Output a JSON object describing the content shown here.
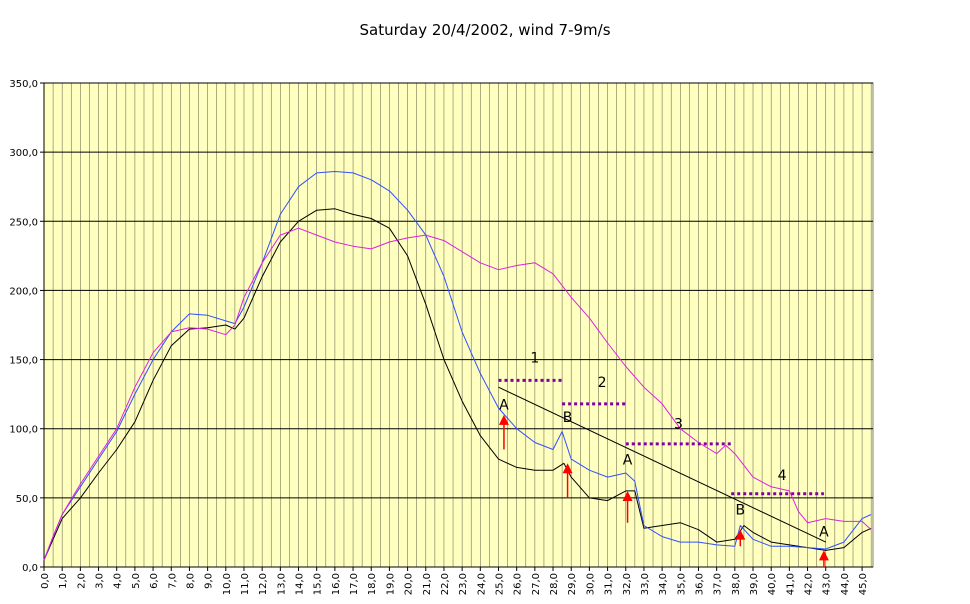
{
  "chart_data": {
    "type": "line",
    "title": "Saturday 20/4/2002, wind 7-9m/s",
    "xlim": [
      0,
      45.6
    ],
    "ylim": [
      0,
      350
    ],
    "y_ticks": [
      "0,0",
      "50,0",
      "100,0",
      "150,0",
      "200,0",
      "250,0",
      "300,0",
      "350,0"
    ],
    "y_tick_values": [
      0,
      50,
      100,
      150,
      200,
      250,
      300,
      350
    ],
    "x_ticks": [
      "0,0",
      "1,0",
      "2,0",
      "3,0",
      "4,0",
      "5,0",
      "6,0",
      "7,0",
      "8,0",
      "9,0",
      "10,0",
      "11,0",
      "12,0",
      "13,0",
      "14,0",
      "15,0",
      "16,0",
      "17,0",
      "18,0",
      "19,0",
      "20,0",
      "21,0",
      "22,0",
      "23,0",
      "24,0",
      "25,0",
      "26,0",
      "27,0",
      "28,0",
      "29,0",
      "30,0",
      "31,0",
      "32,0",
      "33,0",
      "34,0",
      "35,0",
      "36,0",
      "37,0",
      "38,0",
      "39,0",
      "40,0",
      "41,0",
      "42,0",
      "43,0",
      "44,0",
      "45,0"
    ],
    "grid": true,
    "plot_background": "#ffffc0",
    "series": [
      {
        "color": "#000000",
        "x": [
          0,
          0.5,
          1,
          2,
          3,
          4,
          5,
          6,
          7,
          8,
          9,
          10,
          10.5,
          11,
          12,
          13,
          14,
          15,
          16,
          17,
          18,
          19,
          20,
          21,
          22,
          23,
          24,
          25,
          26,
          27,
          28,
          28.6,
          29,
          30,
          31,
          32,
          32.5,
          33,
          34,
          35,
          36,
          37,
          38,
          38.5,
          39,
          40,
          41,
          42,
          43,
          44,
          45,
          45.5
        ],
        "y": [
          5,
          20,
          35,
          50,
          68,
          85,
          105,
          135,
          160,
          172,
          173,
          175,
          172,
          180,
          210,
          235,
          250,
          258,
          259,
          255,
          252,
          245,
          225,
          190,
          150,
          120,
          95,
          78,
          72,
          70,
          70,
          75,
          65,
          50,
          48,
          55,
          55,
          28,
          30,
          32,
          27,
          18,
          20,
          30,
          25,
          18,
          16,
          14,
          12,
          14,
          25,
          28
        ]
      },
      {
        "color": "#3050ff",
        "x": [
          0,
          0.5,
          1,
          2,
          3,
          4,
          5,
          6,
          7,
          8,
          9,
          10,
          10.5,
          11,
          12,
          13,
          14,
          15,
          16,
          17,
          18,
          19,
          20,
          21,
          22,
          23,
          24,
          25,
          26,
          27,
          28,
          28.5,
          29,
          30,
          31,
          32,
          32.5,
          33,
          34,
          35,
          36,
          37,
          38,
          38.3,
          39,
          40,
          41,
          42,
          43,
          44,
          45,
          45.5
        ],
        "y": [
          5,
          22,
          38,
          58,
          78,
          98,
          125,
          150,
          170,
          183,
          182,
          178,
          176,
          188,
          220,
          255,
          275,
          285,
          286,
          285,
          280,
          272,
          258,
          240,
          210,
          170,
          140,
          115,
          100,
          90,
          85,
          98,
          78,
          70,
          65,
          68,
          62,
          30,
          22,
          18,
          18,
          16,
          15,
          30,
          20,
          15,
          15,
          14,
          13,
          18,
          35,
          38
        ]
      },
      {
        "color": "#e020e0",
        "x": [
          0,
          0.5,
          1,
          2,
          3,
          4,
          5,
          6,
          7,
          8,
          9,
          10,
          10.5,
          11,
          12,
          13,
          14,
          15,
          16,
          17,
          18,
          19,
          20,
          21,
          22,
          23,
          24,
          25,
          26,
          27,
          28,
          29,
          30,
          31,
          32,
          33,
          34,
          35,
          36,
          37,
          37.5,
          38,
          39,
          40,
          41,
          41.5,
          42,
          43,
          44,
          45,
          45.5
        ],
        "y": [
          5,
          22,
          38,
          60,
          80,
          100,
          130,
          155,
          170,
          173,
          172,
          168,
          175,
          195,
          220,
          240,
          245,
          240,
          235,
          232,
          230,
          235,
          238,
          240,
          236,
          228,
          220,
          215,
          218,
          220,
          212,
          195,
          180,
          162,
          145,
          130,
          118,
          100,
          90,
          82,
          88,
          82,
          65,
          58,
          55,
          40,
          32,
          35,
          33,
          33,
          27
        ]
      }
    ],
    "trend_line": {
      "x1": 25,
      "y1": 130,
      "x2": 43,
      "y2": 18,
      "color": "#000000"
    },
    "dotted_segments": [
      {
        "label": "1",
        "x1": 25,
        "x2": 28.5,
        "y": 135,
        "label_x": 27,
        "label_y": 148
      },
      {
        "label": "2",
        "x1": 28.5,
        "x2": 32,
        "y": 118,
        "label_x": 30.7,
        "label_y": 130
      },
      {
        "label": "3",
        "x1": 32,
        "x2": 37.8,
        "y": 89,
        "label_x": 34.9,
        "label_y": 100
      },
      {
        "label": "4",
        "x1": 37.8,
        "x2": 42.9,
        "y": 53,
        "label_x": 40.6,
        "label_y": 63
      }
    ],
    "markers": [
      {
        "label": "A",
        "x": 25.3,
        "y_label": 114,
        "y_arrow_tip": 110,
        "y_arrow_base": 85
      },
      {
        "label": "B",
        "x": 28.8,
        "y_label": 105,
        "y_arrow_tip": 75,
        "y_arrow_base": 50
      },
      {
        "label": "A",
        "x": 32.1,
        "y_label": 74,
        "y_arrow_tip": 55,
        "y_arrow_base": 32
      },
      {
        "label": "B",
        "x": 38.3,
        "y_label": 38,
        "y_arrow_tip": 27,
        "y_arrow_base": 15
      },
      {
        "label": "A",
        "x": 42.9,
        "y_label": 22,
        "y_arrow_tip": 12,
        "y_arrow_base": 0
      }
    ],
    "marker_color": "#ff0000",
    "dotted_color": "#8000a0"
  }
}
